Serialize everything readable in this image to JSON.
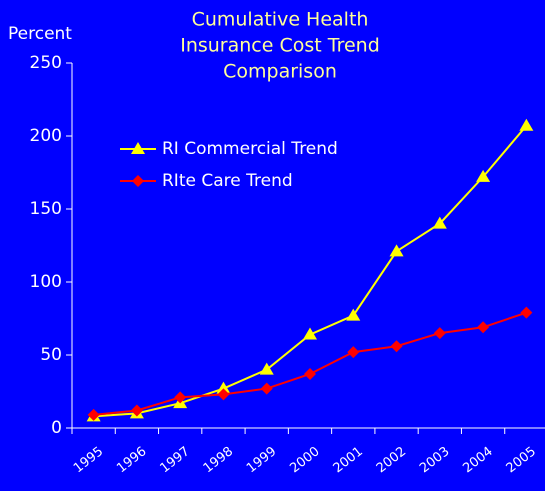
{
  "chart_data": {
    "type": "line",
    "title": "Cumulative Health Insurance Cost Trend Comparison",
    "title_lines": [
      "Cumulative Health",
      "Insurance Cost Trend",
      "Comparison"
    ],
    "y_label": "Percent",
    "categories": [
      "1995",
      "1996",
      "1997",
      "1998",
      "1999",
      "2000",
      "2001",
      "2002",
      "2003",
      "2004",
      "2005"
    ],
    "series": [
      {
        "name": "RI Commercial Trend",
        "color": "#ffff00",
        "marker": "triangle",
        "values": [
          8,
          10,
          17,
          27,
          40,
          64,
          77,
          121,
          140,
          172,
          207
        ]
      },
      {
        "name": "RIte Care Trend",
        "color": "#ff0000",
        "marker": "diamond",
        "values": [
          9,
          12,
          21,
          23,
          27,
          37,
          52,
          56,
          65,
          69,
          79
        ]
      }
    ],
    "ylim": [
      0,
      250
    ],
    "yticks": [
      0,
      50,
      100,
      150,
      200,
      250
    ],
    "legend": "upper left",
    "grid": false
  }
}
